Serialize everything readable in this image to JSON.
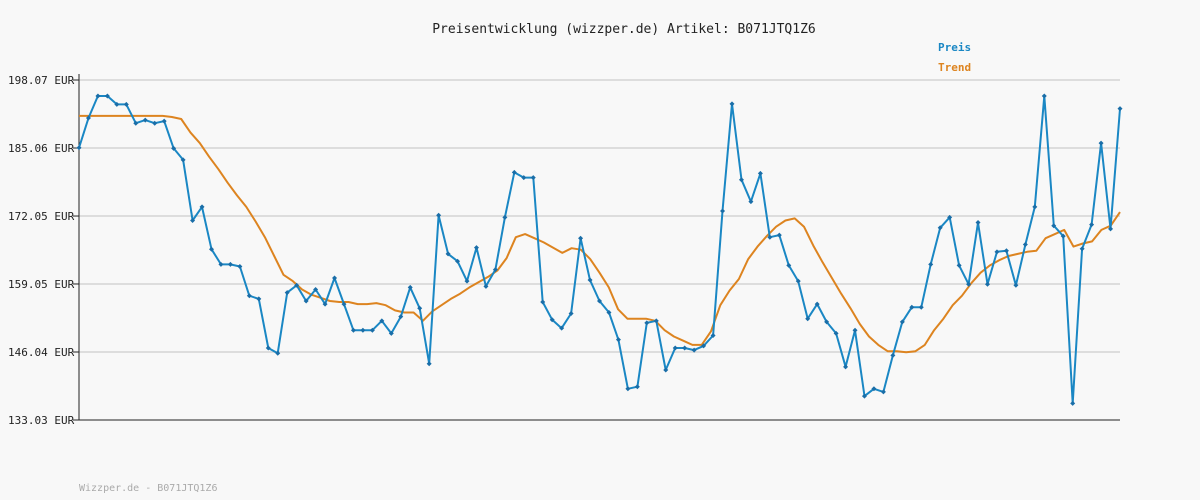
{
  "chart_data": {
    "type": "line",
    "title": "Preisentwicklung (wizzper.de) Artikel: B071JTQ1Z6",
    "xlabel": "",
    "ylabel": "",
    "ylim": [
      133.03,
      198.07
    ],
    "yticks": [
      "198.07 EUR",
      "185.06 EUR",
      "172.05 EUR",
      "159.05 EUR",
      "146.04 EUR",
      "133.03 EUR"
    ],
    "ytick_values": [
      198.07,
      185.06,
      172.05,
      159.05,
      146.04,
      133.03
    ],
    "grid": true,
    "legend_position": "top-right",
    "colors": {
      "Preis": "#1a87c4",
      "Trend": "#dd8420"
    },
    "series": [
      {
        "name": "Preis",
        "values": [
          185.1,
          190.8,
          195.0,
          195.0,
          193.4,
          193.4,
          189.8,
          190.4,
          189.8,
          190.2,
          185.0,
          182.8,
          171.2,
          173.8,
          165.7,
          162.8,
          162.8,
          162.4,
          156.8,
          156.2,
          146.8,
          145.8,
          157.4,
          158.8,
          155.8,
          158.0,
          155.2,
          160.2,
          155.2,
          150.2,
          150.2,
          150.2,
          152.0,
          149.6,
          152.8,
          158.4,
          154.4,
          143.8,
          172.2,
          164.8,
          163.4,
          159.6,
          166.0,
          158.6,
          161.8,
          171.8,
          180.4,
          179.4,
          179.4,
          155.6,
          152.2,
          150.6,
          153.4,
          167.8,
          159.8,
          155.8,
          153.6,
          148.4,
          139.0,
          139.4,
          151.6,
          152.0,
          142.6,
          146.8,
          146.8,
          146.4,
          147.2,
          149.2,
          173.0,
          193.5,
          179.0,
          174.8,
          180.2,
          168.0,
          168.4,
          162.6,
          159.6,
          152.4,
          155.2,
          151.8,
          149.6,
          143.2,
          150.2,
          137.6,
          139.0,
          138.4,
          145.4,
          151.8,
          154.6,
          154.6,
          162.8,
          169.8,
          171.8,
          162.6,
          159.0,
          170.8,
          159.0,
          165.2,
          165.4,
          158.8,
          166.6,
          173.8,
          195.0,
          170.2,
          168.2,
          136.2,
          165.8,
          170.4,
          186.0,
          169.6,
          192.6
        ]
      },
      {
        "name": "Trend",
        "values": [
          191.2,
          191.2,
          191.2,
          191.2,
          191.2,
          191.2,
          191.2,
          191.2,
          191.2,
          191.2,
          191.0,
          190.6,
          188.0,
          186.0,
          183.4,
          181.0,
          178.4,
          176.0,
          173.8,
          171.0,
          168.0,
          164.4,
          160.8,
          159.6,
          158.0,
          157.0,
          156.4,
          155.8,
          155.6,
          155.6,
          155.2,
          155.2,
          155.4,
          155.0,
          154.0,
          153.6,
          153.6,
          152.0,
          153.8,
          155.0,
          156.2,
          157.2,
          158.4,
          159.4,
          160.4,
          161.6,
          164.0,
          168.0,
          168.6,
          167.8,
          167.0,
          166.0,
          165.0,
          165.9,
          165.6,
          163.8,
          161.2,
          158.4,
          154.2,
          152.4,
          152.4,
          152.4,
          152.0,
          150.2,
          149.0,
          148.2,
          147.4,
          147.4,
          150.0,
          155.0,
          157.8,
          160.0,
          163.8,
          166.2,
          168.2,
          170.0,
          171.2,
          171.6,
          170.0,
          166.4,
          163.2,
          160.2,
          157.2,
          154.4,
          151.4,
          149.0,
          147.4,
          146.2,
          146.2,
          146.0,
          146.2,
          147.4,
          150.2,
          152.4,
          155.0,
          156.8,
          159.2,
          161.2,
          162.6,
          163.6,
          164.4,
          164.8,
          165.2,
          165.4,
          167.8,
          168.6,
          169.4,
          166.2,
          166.8,
          167.2,
          169.4,
          170.2,
          172.8
        ]
      }
    ],
    "footer": "Wizzper.de - B071JTQ1Z6"
  }
}
